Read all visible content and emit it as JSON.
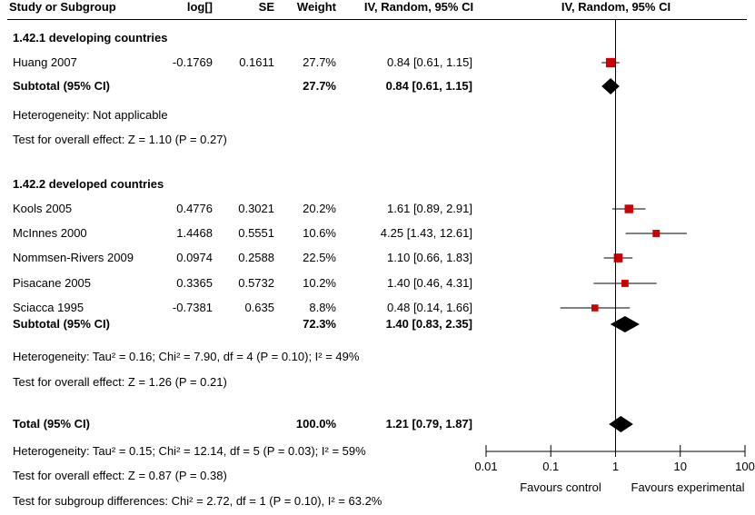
{
  "chart_data": {
    "type": "forest",
    "headers": {
      "study": "Study or Subgroup",
      "log": "log[]",
      "se": "SE",
      "weight": "Weight",
      "ci": "IV, Random, 95% CI",
      "plot": "IV, Random, 95% CI"
    },
    "subgroups": [
      {
        "title": "1.42.1 developing countries",
        "studies": [
          {
            "name": "Huang 2007",
            "log": "-0.1769",
            "se": "0.1611",
            "weight": "27.7%",
            "ci_text": "0.84 [0.61, 1.15]",
            "est": 0.84,
            "lo": 0.61,
            "hi": 1.15,
            "w": 27.7
          }
        ],
        "subtotal": {
          "label": "Subtotal (95% CI)",
          "weight": "27.7%",
          "ci_text": "0.84 [0.61, 1.15]",
          "est": 0.84,
          "lo": 0.61,
          "hi": 1.15
        },
        "heterogeneity": "Heterogeneity: Not applicable",
        "overall": "Test for overall effect: Z = 1.10 (P = 0.27)"
      },
      {
        "title": "1.42.2 developed countries",
        "studies": [
          {
            "name": "Kools 2005",
            "log": "0.4776",
            "se": "0.3021",
            "weight": "20.2%",
            "ci_text": "1.61 [0.89, 2.91]",
            "est": 1.61,
            "lo": 0.89,
            "hi": 2.91,
            "w": 20.2
          },
          {
            "name": "McInnes 2000",
            "log": "1.4468",
            "se": "0.5551",
            "weight": "10.6%",
            "ci_text": "4.25 [1.43, 12.61]",
            "est": 4.25,
            "lo": 1.43,
            "hi": 12.61,
            "w": 10.6
          },
          {
            "name": "Nommsen-Rivers 2009",
            "log": "0.0974",
            "se": "0.2588",
            "weight": "22.5%",
            "ci_text": "1.10 [0.66, 1.83]",
            "est": 1.1,
            "lo": 0.66,
            "hi": 1.83,
            "w": 22.5
          },
          {
            "name": "Pisacane 2005",
            "log": "0.3365",
            "se": "0.5732",
            "weight": "10.2%",
            "ci_text": "1.40 [0.46, 4.31]",
            "est": 1.4,
            "lo": 0.46,
            "hi": 4.31,
            "w": 10.2
          },
          {
            "name": "Sciacca 1995",
            "log": "-0.7381",
            "se": "0.635",
            "weight": "8.8%",
            "ci_text": "0.48 [0.14, 1.66]",
            "est": 0.48,
            "lo": 0.14,
            "hi": 1.66,
            "w": 8.8
          }
        ],
        "subtotal": {
          "label": "Subtotal (95% CI)",
          "weight": "72.3%",
          "ci_text": "1.40 [0.83, 2.35]",
          "est": 1.4,
          "lo": 0.83,
          "hi": 2.35
        },
        "heterogeneity": "Heterogeneity: Tau² = 0.16; Chi² = 7.90, df = 4 (P = 0.10); I² = 49%",
        "overall": "Test for overall effect: Z = 1.26 (P = 0.21)"
      }
    ],
    "total": {
      "label": "Total (95% CI)",
      "weight": "100.0%",
      "ci_text": "1.21 [0.79, 1.87]",
      "est": 1.21,
      "lo": 0.79,
      "hi": 1.87
    },
    "total_heterogeneity": "Heterogeneity: Tau² = 0.15; Chi² = 12.14, df = 5 (P = 0.03); I² = 59%",
    "total_overall": "Test for overall effect: Z = 0.87 (P = 0.38)",
    "subgroup_diff": "Test for subgroup differences: Chi² = 2.72, df = 1 (P = 0.10), I² = 63.2%",
    "x_scale": "log",
    "xlim": [
      0.01,
      100
    ],
    "x_ticks": [
      0.01,
      0.1,
      1,
      10,
      100
    ],
    "x_tick_labels": [
      "0.01",
      "0.1",
      "1",
      "10",
      "100"
    ],
    "favours_left": "Favours control",
    "favours_right": "Favours experimental",
    "colors": {
      "study_marker": "#cc0000",
      "diamond": "#000000",
      "lines": "#000000"
    }
  }
}
